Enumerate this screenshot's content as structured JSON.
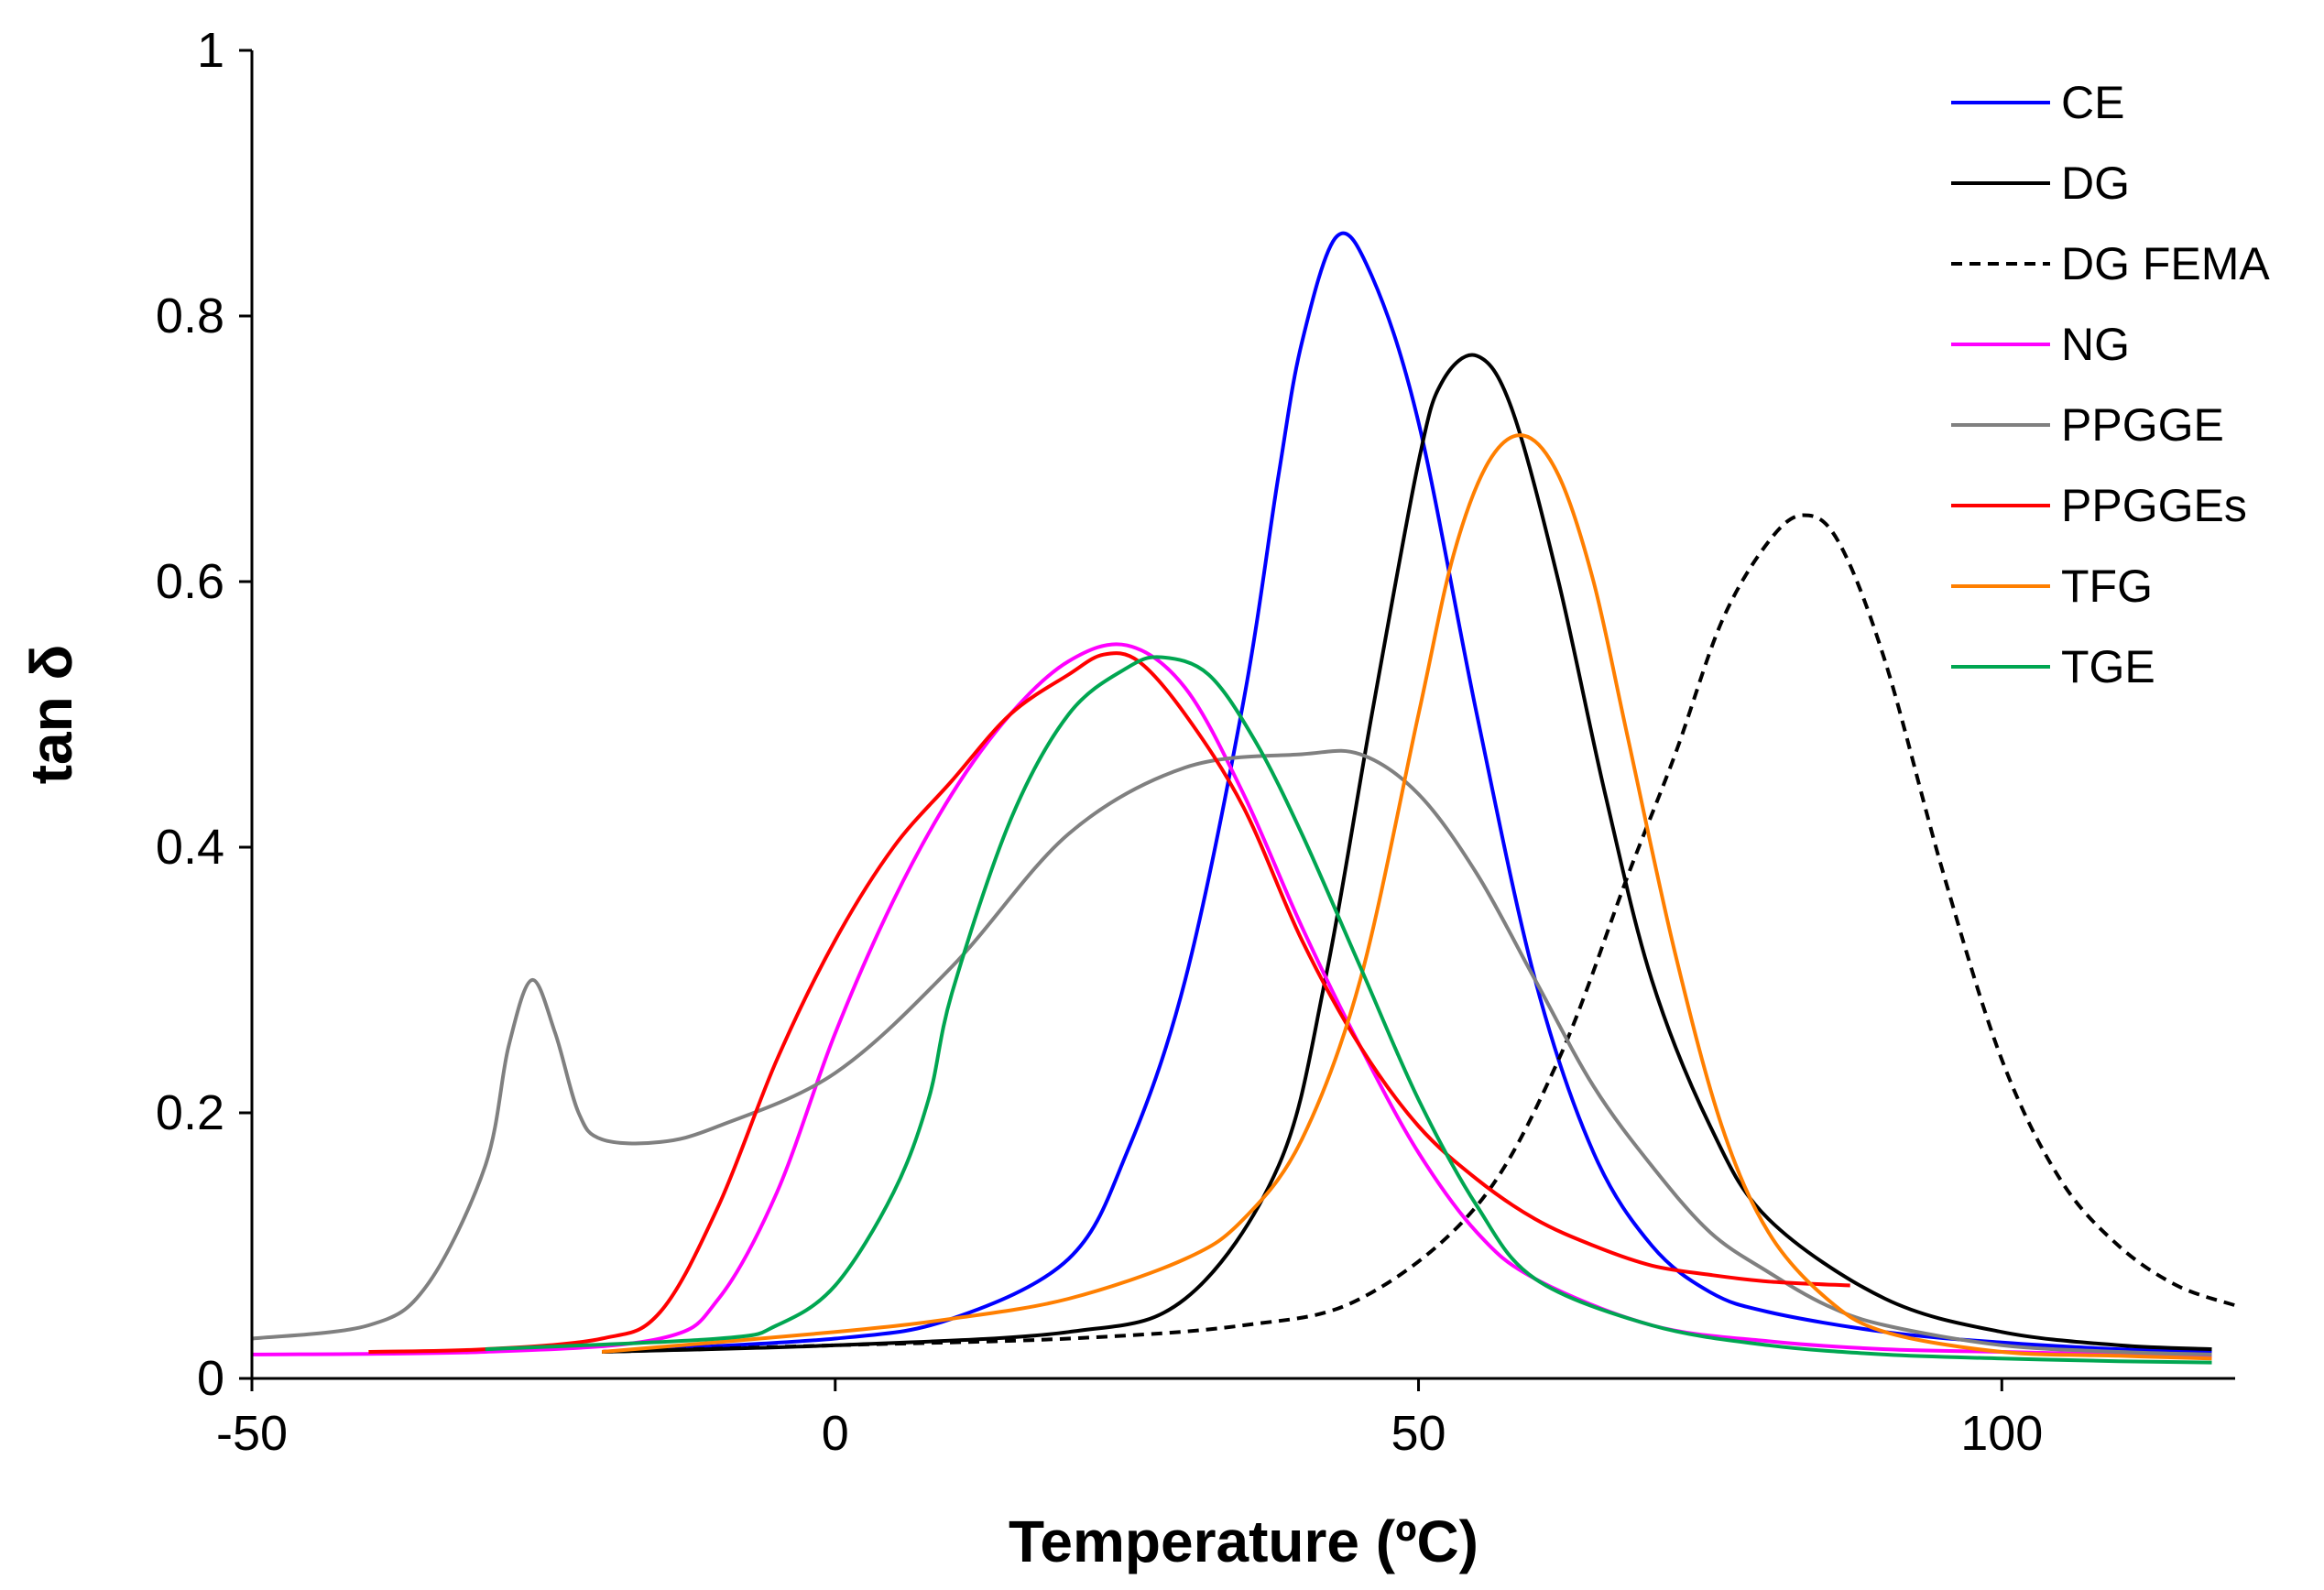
{
  "chart_data": {
    "type": "line",
    "title": "",
    "xlabel": "Temperature (ºC)",
    "ylabel": "tan δ",
    "xlim": [
      -50,
      120
    ],
    "ylim": [
      0,
      1
    ],
    "xticks": [
      -50,
      0,
      50,
      100
    ],
    "xtick_labels": [
      "-50",
      "0",
      "50",
      "100"
    ],
    "yticks": [
      0,
      0.2,
      0.4,
      0.6,
      0.8,
      1
    ],
    "ytick_labels": [
      "0",
      "0.2",
      "0.4",
      "0.6",
      "0.8",
      "1"
    ],
    "grid": false,
    "legend_position": "top-right",
    "series": [
      {
        "name": "CE",
        "color": "#0000ff",
        "dash": "solid",
        "x": [
          -20,
          0,
          10,
          20,
          25,
          30,
          35,
          38,
          40,
          43,
          46,
          50,
          55,
          60,
          65,
          70,
          75,
          80,
          90,
          100,
          110,
          118
        ],
        "y": [
          0.02,
          0.03,
          0.045,
          0.09,
          0.17,
          0.3,
          0.51,
          0.68,
          0.78,
          0.86,
          0.83,
          0.72,
          0.5,
          0.3,
          0.17,
          0.1,
          0.065,
          0.05,
          0.035,
          0.027,
          0.022,
          0.02
        ]
      },
      {
        "name": "DG",
        "color": "#000000",
        "dash": "solid",
        "x": [
          -20,
          0,
          20,
          30,
          38,
          42,
          46,
          50,
          52,
          55,
          58,
          62,
          66,
          70,
          75,
          80,
          90,
          100,
          110,
          118
        ],
        "y": [
          0.02,
          0.025,
          0.035,
          0.06,
          0.16,
          0.3,
          0.5,
          0.69,
          0.75,
          0.77,
          0.73,
          0.6,
          0.44,
          0.3,
          0.19,
          0.12,
          0.06,
          0.035,
          0.025,
          0.022
        ]
      },
      {
        "name": "DG FEMA",
        "color": "#000000",
        "dash": "dashed",
        "x": [
          -20,
          0,
          20,
          35,
          45,
          55,
          62,
          68,
          72,
          76,
          80,
          83,
          86,
          90,
          95,
          100,
          105,
          110,
          115,
          120
        ],
        "y": [
          0.02,
          0.025,
          0.03,
          0.04,
          0.06,
          0.13,
          0.24,
          0.38,
          0.47,
          0.57,
          0.63,
          0.65,
          0.63,
          0.54,
          0.38,
          0.24,
          0.15,
          0.1,
          0.07,
          0.055
        ]
      },
      {
        "name": "NG",
        "color": "#ff00ff",
        "dash": "solid",
        "x": [
          -50,
          -30,
          -15,
          -10,
          -5,
          0,
          5,
          10,
          15,
          20,
          25,
          30,
          35,
          40,
          45,
          50,
          55,
          60,
          70,
          80,
          90,
          100,
          110,
          118
        ],
        "y": [
          0.018,
          0.02,
          0.03,
          0.06,
          0.14,
          0.26,
          0.36,
          0.44,
          0.5,
          0.54,
          0.552,
          0.52,
          0.44,
          0.34,
          0.25,
          0.17,
          0.11,
          0.075,
          0.04,
          0.028,
          0.022,
          0.02,
          0.018,
          0.017
        ]
      },
      {
        "name": "PPGGE",
        "color": "#808080",
        "dash": "solid",
        "x": [
          -50,
          -40,
          -35,
          -30,
          -28,
          -26,
          -24,
          -22,
          -20,
          -15,
          -10,
          0,
          10,
          20,
          30,
          40,
          45,
          50,
          55,
          60,
          65,
          70,
          75,
          80,
          85,
          90,
          100,
          110,
          118
        ],
        "y": [
          0.03,
          0.04,
          0.07,
          0.16,
          0.25,
          0.3,
          0.26,
          0.2,
          0.18,
          0.178,
          0.19,
          0.23,
          0.31,
          0.41,
          0.46,
          0.47,
          0.47,
          0.44,
          0.38,
          0.3,
          0.22,
          0.16,
          0.11,
          0.08,
          0.055,
          0.04,
          0.025,
          0.02,
          0.018
        ]
      },
      {
        "name": "PPGGEs",
        "color": "#ff0000",
        "dash": "solid",
        "x": [
          -40,
          -30,
          -20,
          -15,
          -10,
          -5,
          0,
          5,
          10,
          15,
          20,
          23,
          26,
          30,
          35,
          40,
          45,
          50,
          55,
          60,
          65,
          70,
          75,
          80,
          87
        ],
        "y": [
          0.02,
          0.022,
          0.03,
          0.05,
          0.13,
          0.24,
          0.33,
          0.4,
          0.45,
          0.5,
          0.53,
          0.545,
          0.54,
          0.5,
          0.43,
          0.33,
          0.25,
          0.19,
          0.15,
          0.12,
          0.1,
          0.085,
          0.078,
          0.073,
          0.07
        ]
      },
      {
        "name": "TFG",
        "color": "#ff7f00",
        "dash": "solid",
        "x": [
          -20,
          0,
          10,
          20,
          30,
          35,
          40,
          45,
          50,
          53,
          56,
          59,
          62,
          65,
          68,
          72,
          76,
          80,
          85,
          90,
          100,
          110,
          118
        ],
        "y": [
          0.02,
          0.035,
          0.045,
          0.06,
          0.09,
          0.12,
          0.18,
          0.3,
          0.5,
          0.62,
          0.69,
          0.71,
          0.68,
          0.6,
          0.48,
          0.32,
          0.19,
          0.11,
          0.06,
          0.035,
          0.02,
          0.017,
          0.015
        ]
      },
      {
        "name": "TGE",
        "color": "#00a651",
        "dash": "solid",
        "x": [
          -30,
          -10,
          -5,
          0,
          5,
          8,
          10,
          15,
          20,
          25,
          28,
          32,
          36,
          40,
          45,
          50,
          55,
          60,
          70,
          80,
          90,
          100,
          110,
          118
        ],
        "y": [
          0.022,
          0.03,
          0.04,
          0.07,
          0.14,
          0.21,
          0.29,
          0.42,
          0.5,
          0.535,
          0.543,
          0.53,
          0.48,
          0.41,
          0.31,
          0.21,
          0.13,
          0.075,
          0.04,
          0.025,
          0.018,
          0.015,
          0.013,
          0.012
        ]
      }
    ]
  }
}
